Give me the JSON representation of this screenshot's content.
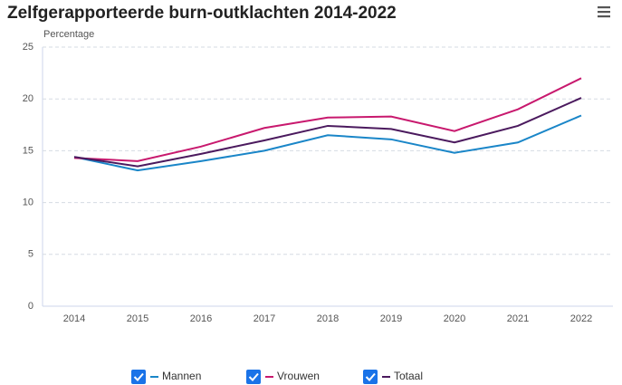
{
  "chart_data": {
    "type": "line",
    "title": "Zelfgerapporteerde burn-outklachten 2014-2022",
    "y_label": "Percentage",
    "categories": [
      "2014",
      "2015",
      "2016",
      "2017",
      "2018",
      "2019",
      "2020",
      "2021",
      "2022"
    ],
    "series": [
      {
        "name": "Mannen",
        "color": "#1a86c8",
        "values": [
          14.4,
          13.1,
          14.0,
          15.0,
          16.5,
          16.1,
          14.8,
          15.8,
          18.4
        ]
      },
      {
        "name": "Vrouwen",
        "color": "#c8196e",
        "values": [
          14.3,
          14.0,
          15.4,
          17.2,
          18.2,
          18.3,
          16.9,
          19.0,
          22.0
        ]
      },
      {
        "name": "Totaal",
        "color": "#4b1a5e",
        "values": [
          14.4,
          13.5,
          14.7,
          16.0,
          17.4,
          17.1,
          15.8,
          17.4,
          20.1
        ]
      }
    ],
    "ylim": [
      0,
      25
    ],
    "yticks": [
      0,
      5,
      10,
      15,
      20,
      25
    ],
    "grid": true
  }
}
